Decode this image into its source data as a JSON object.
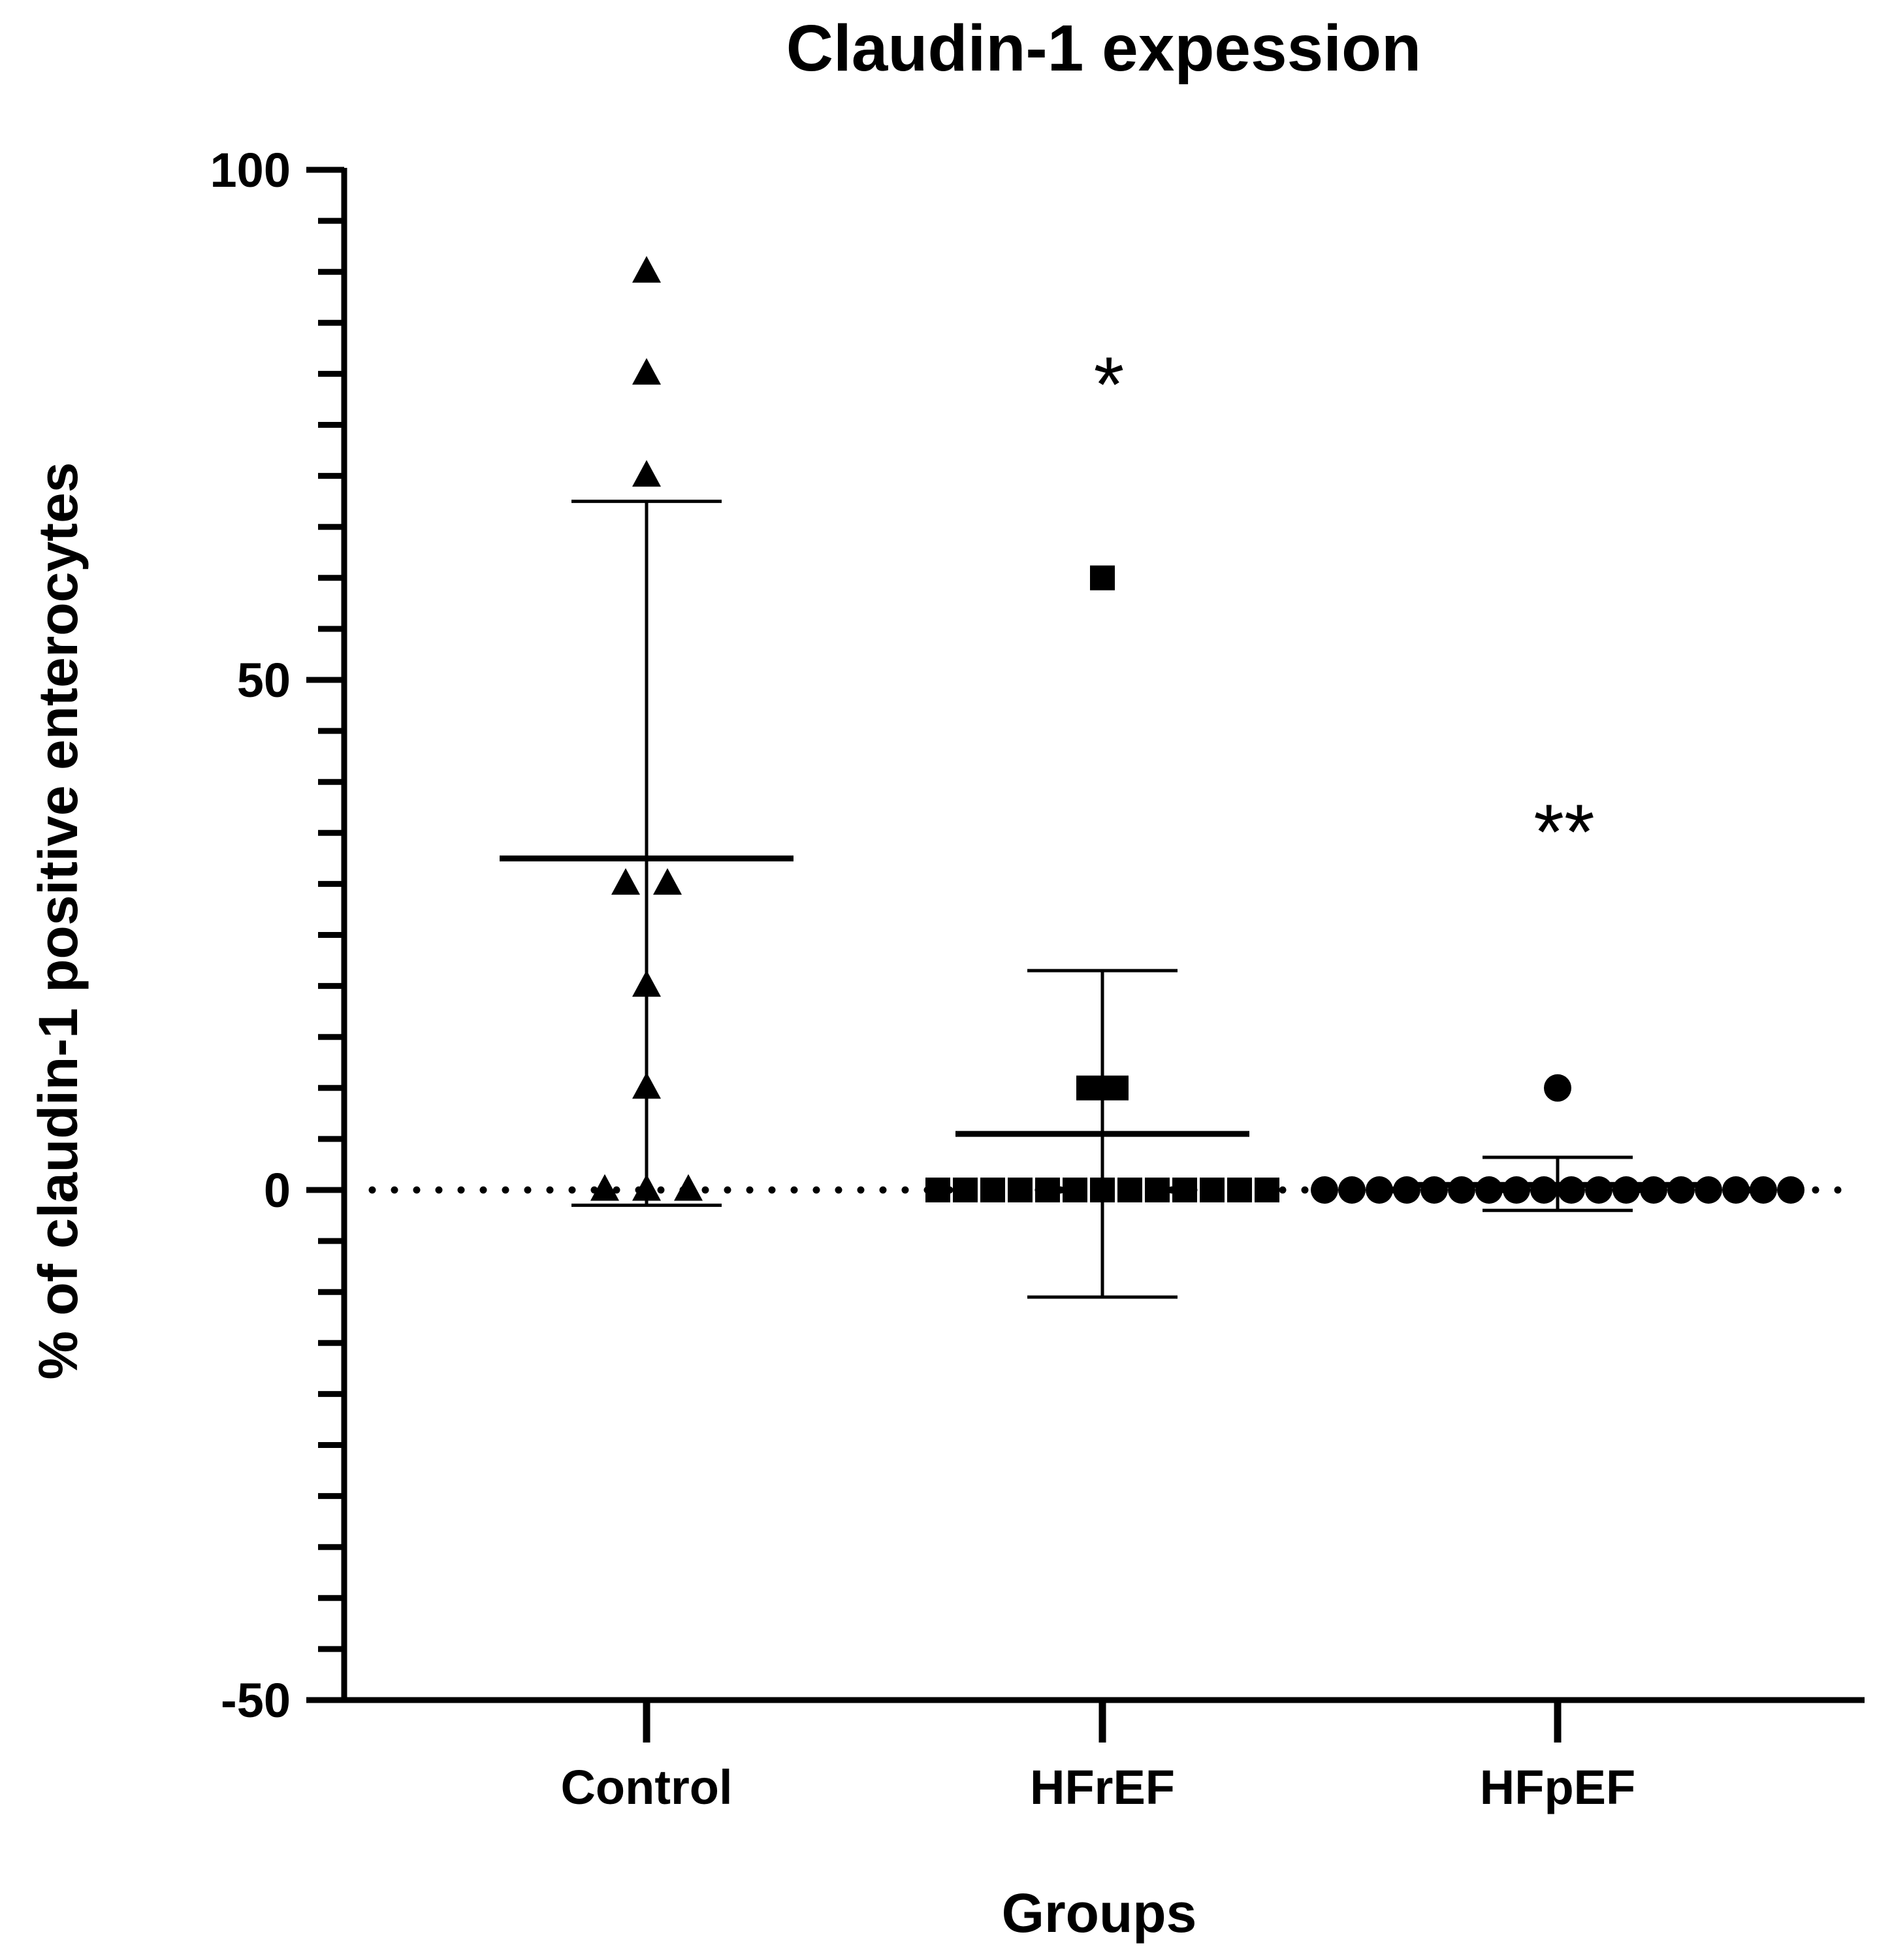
{
  "chart_data": {
    "type": "scatter",
    "title": "Claudin-1 expession",
    "xlabel": "Groups",
    "ylabel": "% of claudin-1 positive enterocytes",
    "ylim": [
      -50,
      100
    ],
    "yticks": [
      -50,
      0,
      50,
      100
    ],
    "y_minor_step": 5,
    "reference_line": {
      "y": 0,
      "style": "dotted"
    },
    "categories": [
      "Control",
      "HFrEF",
      "HFpEF"
    ],
    "groups": [
      {
        "name": "Control",
        "marker": "triangle",
        "values": [
          90,
          80,
          70,
          30,
          30,
          20,
          10,
          0,
          0,
          0
        ],
        "mean": 32.5,
        "sd_upper": 67.5,
        "sd_lower": -1.5,
        "annotation": ""
      },
      {
        "name": "HFrEF",
        "marker": "square",
        "values": [
          60,
          10,
          10,
          0,
          0,
          0,
          0,
          0,
          0,
          0,
          0,
          0,
          0,
          0,
          0,
          0
        ],
        "mean": 5.5,
        "sd_upper": 21.5,
        "sd_lower": -10.5,
        "annotation": "*"
      },
      {
        "name": "HFpEF",
        "marker": "circle",
        "values": [
          10,
          0,
          0,
          0,
          0,
          0,
          0,
          0,
          0,
          0,
          0,
          0,
          0,
          0,
          0,
          0,
          0,
          0,
          0
        ],
        "mean": 0.5,
        "sd_upper": 3.2,
        "sd_lower": -2.0,
        "annotation": "**"
      }
    ]
  }
}
